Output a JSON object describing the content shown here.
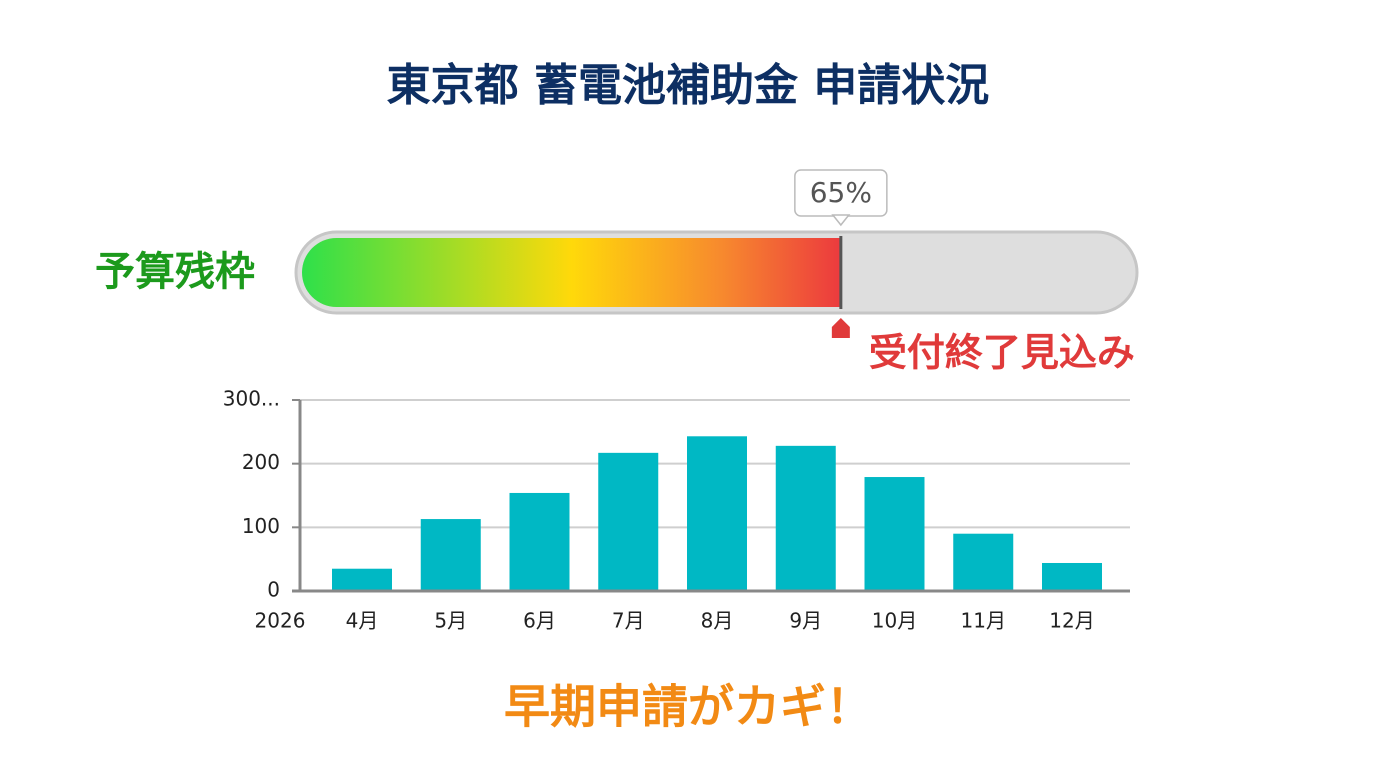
{
  "title": "東京都 蓄電池補助金 申請状況",
  "gauge": {
    "label": "予算残枠",
    "value": 65,
    "value_label": "65%",
    "range": [
      0,
      100
    ],
    "marker_label": "受付終了見込み"
  },
  "chart_data": {
    "type": "bar",
    "x_axis_year": "2026",
    "categories": [
      "4月",
      "5月",
      "6月",
      "7月",
      "8月",
      "9月",
      "10月",
      "11月",
      "12月"
    ],
    "values": [
      35,
      113,
      154,
      217,
      243,
      228,
      179,
      90,
      44
    ],
    "color": "#00b8c4",
    "ylim": [
      0,
      300
    ],
    "yticks": [
      0,
      100,
      200,
      {
        "value": 300,
        "label": "300..."
      }
    ],
    "grid": true
  },
  "footer": "早期申請がカギ！"
}
